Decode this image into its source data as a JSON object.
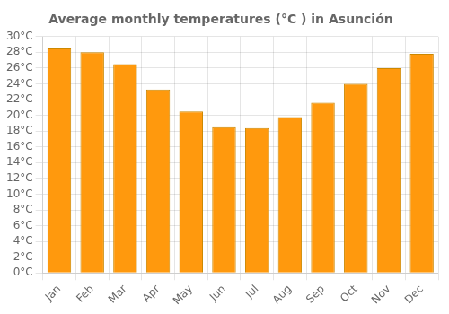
{
  "chart_data": {
    "type": "bar",
    "title": "Average monthly temperatures (°C ) in Asunción",
    "categories": [
      "Jan",
      "Feb",
      "Mar",
      "Apr",
      "May",
      "Jun",
      "Jul",
      "Aug",
      "Sep",
      "Oct",
      "Nov",
      "Dec"
    ],
    "values": [
      28.5,
      28.0,
      26.5,
      23.3,
      20.5,
      18.5,
      18.4,
      19.8,
      21.6,
      24.0,
      26.0,
      27.8
    ],
    "color": "#FF990D",
    "ylim": [
      0,
      30
    ],
    "yticks": [
      {
        "value": 0,
        "label": "0°C"
      },
      {
        "value": 2,
        "label": "2°C"
      },
      {
        "value": 4,
        "label": "4°C"
      },
      {
        "value": 6,
        "label": "6°C"
      },
      {
        "value": 8,
        "label": "8°C"
      },
      {
        "value": 10,
        "label": "10°C"
      },
      {
        "value": 12,
        "label": "12°C"
      },
      {
        "value": 14,
        "label": "14°C"
      },
      {
        "value": 16,
        "label": "16°C"
      },
      {
        "value": 18,
        "label": "18°C"
      },
      {
        "value": 20,
        "label": "20°C"
      },
      {
        "value": 22,
        "label": "22°C"
      },
      {
        "value": 24,
        "label": "24°C"
      },
      {
        "value": 26,
        "label": "26°C"
      },
      {
        "value": 28,
        "label": "28°C"
      },
      {
        "value": 30,
        "label": "30°C"
      }
    ],
    "grid": true
  }
}
